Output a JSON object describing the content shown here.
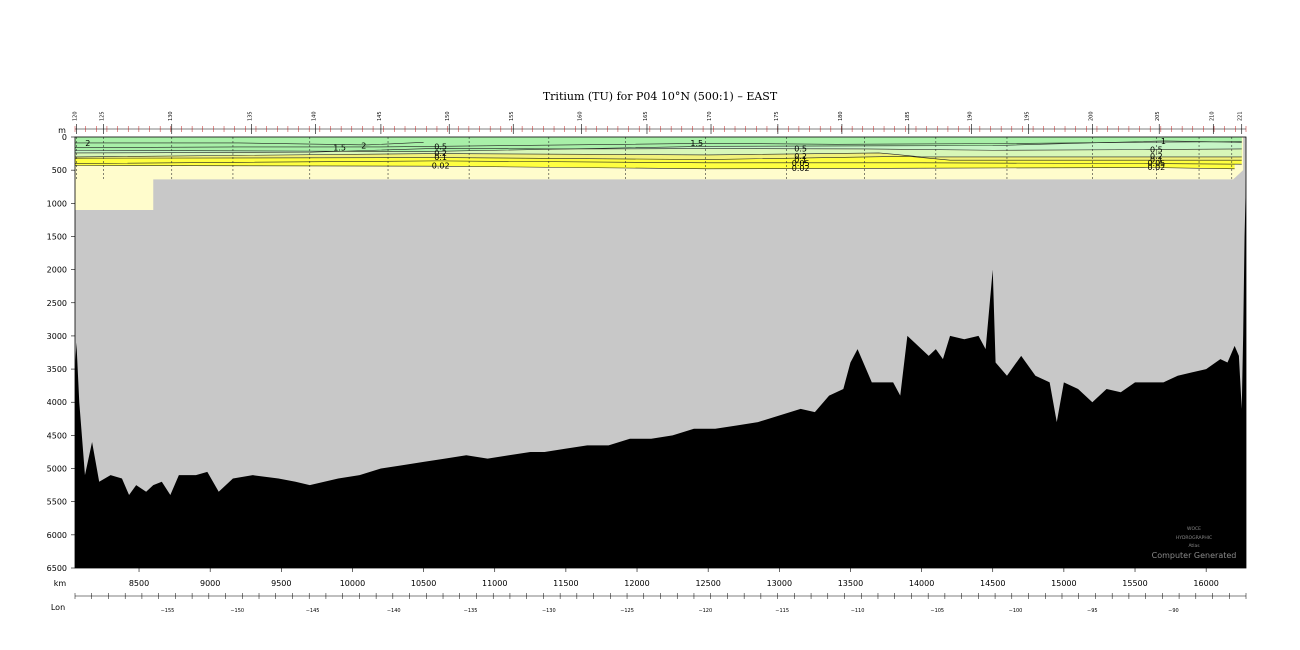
{
  "chart_data": {
    "type": "area",
    "title": "Tritium (TU) for P04 10°N (500:1) – EAST",
    "colors": {
      "band_gt_1": "#a8f0a8",
      "band_05_1": "#c6f5c6",
      "band_02_05": "#d8f7b8",
      "band_01_02": "#f2f27a",
      "band_005_01": "#ffff40",
      "band_lt_005": "#fffccc",
      "no_data": "#c8c8c8",
      "bottom": "#000000"
    },
    "y_axis": {
      "unit": "m",
      "min": 0,
      "max": 6500,
      "ticks": [
        0,
        500,
        1000,
        1500,
        2000,
        2500,
        3000,
        3500,
        4000,
        4500,
        5000,
        5500,
        6000,
        6500
      ]
    },
    "x_axis": {
      "unit": "km",
      "min": 8050,
      "max": 16280,
      "ticks": [
        8500,
        9000,
        9500,
        10000,
        10500,
        11000,
        11500,
        12000,
        12500,
        13000,
        13500,
        14000,
        14500,
        15000,
        15500,
        16000
      ]
    },
    "lon_axis": {
      "label": "Lon",
      "ticks": [
        {
          "lon": -155,
          "km": 8700
        },
        {
          "lon": -150,
          "km": 9190
        },
        {
          "lon": -145,
          "km": 9720
        },
        {
          "lon": -140,
          "km": 10290
        },
        {
          "lon": -135,
          "km": 10830
        },
        {
          "lon": -130,
          "km": 11380
        },
        {
          "lon": -125,
          "km": 11930
        },
        {
          "lon": -120,
          "km": 12480
        },
        {
          "lon": -115,
          "km": 13020
        },
        {
          "lon": -110,
          "km": 13550
        },
        {
          "lon": -105,
          "km": 14110
        },
        {
          "lon": -100,
          "km": 14660
        },
        {
          "lon": -95,
          "km": 15200
        },
        {
          "lon": -90,
          "km": 15770
        }
      ]
    },
    "stations": {
      "numbers": [
        "120",
        "125",
        "130",
        "135",
        "140",
        "145",
        "150",
        "155",
        "160",
        "165",
        "170",
        "175",
        "180",
        "185",
        "190",
        "195",
        "200",
        "205",
        "210",
        "221"
      ],
      "km": [
        8060,
        8250,
        8730,
        9290,
        9740,
        10200,
        10680,
        11130,
        11610,
        12070,
        12520,
        12990,
        13440,
        13910,
        14350,
        14750,
        15200,
        15670,
        16050,
        16250
      ]
    },
    "cast_km": [
      8060,
      8250,
      8730,
      9160,
      9700,
      10250,
      10820,
      11380,
      11920,
      12480,
      13050,
      13600,
      14100,
      14600,
      15200,
      15650,
      15950,
      16180
    ],
    "sampled_region": [
      {
        "km": 8050,
        "max_depth": 1100
      },
      {
        "km": 8600,
        "max_depth": 1100
      },
      {
        "km": 8600,
        "max_depth": 640
      },
      {
        "km": 16190,
        "max_depth": 640
      },
      {
        "km": 16260,
        "max_depth": 500
      }
    ],
    "contours": [
      {
        "level": 1.5,
        "label": "1.5",
        "label_points": [
          {
            "km": 9910,
            "depth": 160
          },
          {
            "km": 12420,
            "depth": 90
          }
        ],
        "points": [
          [
            8050,
            160
          ],
          [
            9200,
            150
          ],
          [
            10200,
            150
          ],
          [
            11500,
            120
          ],
          [
            12500,
            95
          ],
          [
            13400,
            110
          ],
          [
            14500,
            100
          ],
          [
            15500,
            80
          ],
          [
            16250,
            70
          ]
        ]
      },
      {
        "level": 2,
        "label": "2",
        "label_points": [
          {
            "km": 8140,
            "depth": 90
          },
          {
            "km": 10080,
            "depth": 130
          }
        ],
        "points": [
          [
            8050,
            90
          ],
          [
            9200,
            90
          ],
          [
            10100,
            120
          ],
          [
            10500,
            80
          ]
        ]
      },
      {
        "level": 1,
        "label": "1",
        "label_points": [
          {
            "km": 15700,
            "depth": 60
          }
        ],
        "points": [
          [
            8050,
            200
          ],
          [
            10500,
            220
          ],
          [
            12500,
            140
          ],
          [
            14500,
            130
          ],
          [
            15700,
            60
          ],
          [
            16250,
            80
          ]
        ]
      },
      {
        "level": 0.5,
        "label": "0.5",
        "label_points": [
          {
            "km": 10620,
            "depth": 145
          },
          {
            "km": 13150,
            "depth": 175
          },
          {
            "km": 15650,
            "depth": 190
          }
        ],
        "points": [
          [
            8050,
            240
          ],
          [
            9700,
            230
          ],
          [
            10600,
            170
          ],
          [
            11500,
            180
          ],
          [
            12500,
            175
          ],
          [
            13600,
            180
          ],
          [
            14500,
            200
          ],
          [
            15600,
            190
          ],
          [
            16250,
            180
          ]
        ]
      },
      {
        "level": 0.2,
        "label": "0.2",
        "label_points": [
          {
            "km": 10620,
            "depth": 240
          },
          {
            "km": 13150,
            "depth": 290
          },
          {
            "km": 15650,
            "depth": 290
          }
        ],
        "points": [
          [
            8050,
            300
          ],
          [
            10600,
            250
          ],
          [
            12500,
            270
          ],
          [
            13700,
            240
          ],
          [
            14000,
            300
          ],
          [
            15600,
            300
          ],
          [
            16250,
            300
          ]
        ]
      },
      {
        "level": 0.1,
        "label": "0.1",
        "label_points": [
          {
            "km": 10620,
            "depth": 300
          },
          {
            "km": 13150,
            "depth": 340
          },
          {
            "km": 15650,
            "depth": 340
          }
        ],
        "points": [
          [
            8050,
            320
          ],
          [
            10600,
            310
          ],
          [
            12500,
            340
          ],
          [
            13900,
            290
          ],
          [
            14200,
            350
          ],
          [
            15600,
            350
          ],
          [
            16250,
            350
          ]
        ]
      },
      {
        "level": 0.05,
        "label": "0.05",
        "label_points": [
          {
            "km": 13150,
            "depth": 390
          },
          {
            "km": 15650,
            "depth": 390
          }
        ],
        "points": [
          [
            8050,
            400
          ],
          [
            10600,
            360
          ],
          [
            12500,
            390
          ],
          [
            14000,
            390
          ],
          [
            15600,
            400
          ],
          [
            16250,
            410
          ]
        ]
      },
      {
        "level": 0.02,
        "label": "0.02",
        "label_points": [
          {
            "km": 10620,
            "depth": 430
          },
          {
            "km": 13150,
            "depth": 470
          },
          {
            "km": 15650,
            "depth": 450
          }
        ],
        "points": [
          [
            8050,
            430
          ],
          [
            10600,
            440
          ],
          [
            12500,
            480
          ],
          [
            14000,
            470
          ],
          [
            15600,
            460
          ],
          [
            16200,
            480
          ]
        ]
      }
    ],
    "bottom_profile": [
      [
        8050,
        3500
      ],
      [
        8060,
        3100
      ],
      [
        8080,
        4000
      ],
      [
        8120,
        5100
      ],
      [
        8170,
        4600
      ],
      [
        8220,
        5200
      ],
      [
        8300,
        5100
      ],
      [
        8380,
        5150
      ],
      [
        8430,
        5400
      ],
      [
        8480,
        5250
      ],
      [
        8550,
        5350
      ],
      [
        8600,
        5250
      ],
      [
        8660,
        5200
      ],
      [
        8720,
        5400
      ],
      [
        8780,
        5100
      ],
      [
        8900,
        5100
      ],
      [
        8980,
        5050
      ],
      [
        9060,
        5350
      ],
      [
        9160,
        5150
      ],
      [
        9300,
        5100
      ],
      [
        9480,
        5150
      ],
      [
        9600,
        5200
      ],
      [
        9700,
        5250
      ],
      [
        9900,
        5150
      ],
      [
        10050,
        5100
      ],
      [
        10200,
        5000
      ],
      [
        10350,
        4950
      ],
      [
        10500,
        4900
      ],
      [
        10650,
        4850
      ],
      [
        10800,
        4800
      ],
      [
        10950,
        4850
      ],
      [
        11100,
        4800
      ],
      [
        11250,
        4750
      ],
      [
        11350,
        4750
      ],
      [
        11500,
        4700
      ],
      [
        11650,
        4650
      ],
      [
        11800,
        4650
      ],
      [
        11950,
        4550
      ],
      [
        12100,
        4550
      ],
      [
        12250,
        4500
      ],
      [
        12400,
        4400
      ],
      [
        12550,
        4400
      ],
      [
        12700,
        4350
      ],
      [
        12850,
        4300
      ],
      [
        13000,
        4200
      ],
      [
        13150,
        4100
      ],
      [
        13250,
        4150
      ],
      [
        13350,
        3900
      ],
      [
        13450,
        3800
      ],
      [
        13500,
        3400
      ],
      [
        13550,
        3200
      ],
      [
        13650,
        3700
      ],
      [
        13750,
        3700
      ],
      [
        13800,
        3700
      ],
      [
        13850,
        3900
      ],
      [
        13900,
        3000
      ],
      [
        13950,
        3100
      ],
      [
        14050,
        3300
      ],
      [
        14100,
        3200
      ],
      [
        14150,
        3350
      ],
      [
        14200,
        3000
      ],
      [
        14300,
        3050
      ],
      [
        14400,
        3000
      ],
      [
        14450,
        3200
      ],
      [
        14500,
        2000
      ],
      [
        14520,
        3400
      ],
      [
        14600,
        3600
      ],
      [
        14700,
        3300
      ],
      [
        14800,
        3600
      ],
      [
        14900,
        3700
      ],
      [
        14950,
        4300
      ],
      [
        15000,
        3700
      ],
      [
        15100,
        3800
      ],
      [
        15200,
        4000
      ],
      [
        15300,
        3800
      ],
      [
        15400,
        3850
      ],
      [
        15500,
        3700
      ],
      [
        15600,
        3700
      ],
      [
        15700,
        3700
      ],
      [
        15800,
        3600
      ],
      [
        15900,
        3550
      ],
      [
        16000,
        3500
      ],
      [
        16100,
        3350
      ],
      [
        16150,
        3400
      ],
      [
        16200,
        3150
      ],
      [
        16230,
        3300
      ],
      [
        16250,
        4100
      ],
      [
        16260,
        3000
      ],
      [
        16270,
        1500
      ],
      [
        16280,
        600
      ]
    ]
  },
  "watermark": {
    "line1": "WOCE",
    "line2": "HYDROGRAPHIC",
    "line3": "Atlas",
    "line4": "Computer Generated"
  }
}
